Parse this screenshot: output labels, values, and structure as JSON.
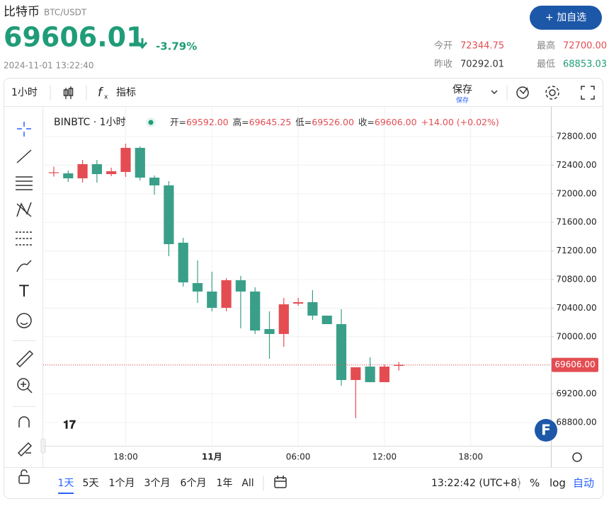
{
  "header": {
    "name": "比特币",
    "pair": "BTC/USDT",
    "price": "69606.01",
    "change": "-3.79%",
    "datetime": "2024-11-01 13:22:40",
    "button": "+ 加自选",
    "stats": [
      {
        "label": "今开",
        "value": "72344.75"
      },
      {
        "label": "最高",
        "value": "72700.00"
      },
      {
        "label": "昨收",
        "value": "70292.01"
      },
      {
        "label": "最低",
        "value": "68853.03"
      }
    ]
  },
  "toolbar": {
    "interval": "1小时",
    "indicators": "指标",
    "save": "保存",
    "save_sub": "保存"
  },
  "chart_data": {
    "type": "candlestick",
    "title": "BINBTC · 1小时",
    "ohlc_legend": [
      {
        "label": "开=",
        "value": "69592.00"
      },
      {
        "label": "高=",
        "value": "69645.25"
      },
      {
        "label": "低=",
        "value": "69526.00"
      },
      {
        "label": "收=",
        "value": "69606.00"
      }
    ],
    "change": "+14.00 (+0.02%)",
    "x": [
      13,
      14,
      15,
      16,
      17,
      18,
      19,
      20,
      21,
      22,
      23,
      24,
      25,
      26,
      27,
      28,
      29,
      30,
      31,
      32,
      33,
      34,
      35,
      36,
      37
    ],
    "open": [
      72290,
      72285,
      72216,
      72414,
      72275,
      72305,
      72642,
      72226,
      72117,
      71315,
      70750,
      70632,
      70404,
      70790,
      70632,
      70107,
      70038,
      70463,
      70483,
      70295,
      70176,
      69394,
      69582,
      69364,
      69592
    ],
    "high": [
      72380,
      72325,
      72473,
      72473,
      72365,
      72701,
      72662,
      72256,
      72176,
      71384,
      71067,
      70909,
      70820,
      70850,
      70691,
      70355,
      70543,
      70543,
      70651,
      70295,
      70384,
      69572,
      69711,
      69612,
      69645.25
    ],
    "low": [
      72240,
      72166,
      72156,
      72156,
      72245,
      72236,
      72186,
      71988,
      71127,
      70701,
      70473,
      70355,
      70355,
      70117,
      70038,
      69691,
      69859,
      70434,
      70236,
      70176,
      69315,
      68859,
      69364,
      69364,
      69526
    ],
    "close": [
      72300,
      72216,
      72414,
      72275,
      72315,
      72642,
      72226,
      72117,
      71295,
      70760,
      70632,
      70404,
      70790,
      70632,
      70087,
      70038,
      70453,
      70483,
      70295,
      70176,
      69394,
      69572,
      69364,
      69582,
      69606
    ],
    "up_color": "#e34d52",
    "down_color": "#3a9f88",
    "xlim": [
      12.46,
      47.58
    ],
    "xticks": [
      {
        "value": 18,
        "label": "18:00"
      },
      {
        "value": 24,
        "label": "11月"
      },
      {
        "value": 30,
        "label": "06:00"
      },
      {
        "value": 36,
        "label": "12:00"
      },
      {
        "value": 42,
        "label": "18:00"
      }
    ],
    "ylim": [
      68473,
      73176
    ],
    "yticks": [
      {
        "value": 72800,
        "label": "72800.00"
      },
      {
        "value": 72400,
        "label": "72400.00"
      },
      {
        "value": 72000,
        "label": "72000.00"
      },
      {
        "value": 71600,
        "label": "71600.00"
      },
      {
        "value": 71200,
        "label": "71200.00"
      },
      {
        "value": 70800,
        "label": "70800.00"
      },
      {
        "value": 70400,
        "label": "70400.00"
      },
      {
        "value": 70000,
        "label": "70000.00"
      },
      {
        "value": 69600,
        "label": "69600.00"
      },
      {
        "value": 69200,
        "label": "69200.00"
      },
      {
        "value": 68800,
        "label": "68800.00"
      }
    ],
    "last_price": {
      "value": 69606,
      "label": "69606.00"
    },
    "grid": true
  },
  "footer": {
    "ranges": [
      "1天",
      "5天",
      "1个月",
      "3个月",
      "6个月",
      "1年",
      "All"
    ],
    "time": "13:22:42 (UTC+8)",
    "percent": "%",
    "log": "log",
    "auto": "自动"
  }
}
